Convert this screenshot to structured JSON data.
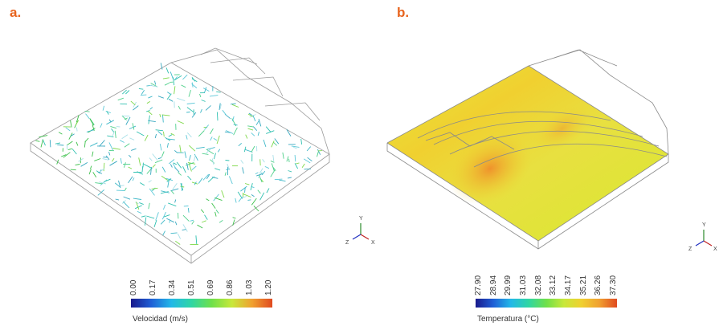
{
  "panels": {
    "a": {
      "label": "a.",
      "legend": {
        "title": "Velocidad (m/s)",
        "ticks": [
          "0.00",
          "0.17",
          "0.34",
          "0.51",
          "0.69",
          "0.86",
          "1.03",
          "1.20"
        ],
        "colors": [
          "#1a1a8c",
          "#1f5fd6",
          "#22b8e8",
          "#2fd6a3",
          "#6fe04a",
          "#c8e83a",
          "#f0a030",
          "#e04a20"
        ]
      }
    },
    "b": {
      "label": "b.",
      "legend": {
        "title": "Temperatura (°C)",
        "ticks": [
          "27.90",
          "28.94",
          "29.99",
          "31.03",
          "32.08",
          "33.12",
          "34.17",
          "35.21",
          "36.26",
          "37.30"
        ],
        "colors": [
          "#1a1a8c",
          "#1f5fd6",
          "#22b8e8",
          "#2fd6a3",
          "#6fe04a",
          "#c8e83a",
          "#f0d030",
          "#f0a030",
          "#e04a20"
        ]
      }
    }
  },
  "axis_triad": {
    "y": "Y",
    "x": "X",
    "z": "Z"
  }
}
